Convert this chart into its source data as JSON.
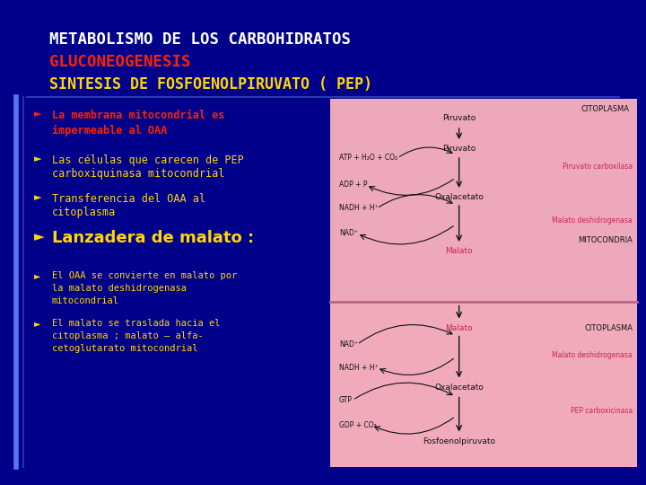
{
  "bg_color": "#00008B",
  "title_line1": "METABOLISMO DE LOS CARBOHIDRATOS",
  "title_line2": "GLUCONEOGENESIS",
  "title_line3": "SINTESIS DE FOSFOENOLPIRUVATO ( PEP)",
  "title_color1": "#FFFFFF",
  "title_color2": "#FF2200",
  "title_color3": "#FFD700",
  "bullet1_color": "#FF2200",
  "bullet1_text1": "La membrana mitocondrial es",
  "bullet1_text2": "impermeable al OAA",
  "bullet_color": "#FFD700",
  "bullet2_text1": "Las células que carecen de PEP",
  "bullet2_text2": "carboxiquinasa mitocondrial",
  "bullet3_text1": "Transferencia del OAA al",
  "bullet3_text2": "citoplasma",
  "bullet4_text": "Lanzadera de malato :",
  "bullet5_text1": "El OAA se convierte en malato por",
  "bullet5_text2": "la malato deshidrogenasa",
  "bullet5_text3": "mitocondrial",
  "bullet6_text1": "El malato se traslada hacia el",
  "bullet6_text2": "citoplasma ; malato – alfa-",
  "bullet6_text3": "cetoglutarato mitocondrial",
  "diag_bg_top": "#F0B8C8",
  "diag_bg_bot": "#ECA8BC",
  "diag_black": "#111111",
  "diag_pink": "#CC2255",
  "diag_sep": "#AA7788"
}
